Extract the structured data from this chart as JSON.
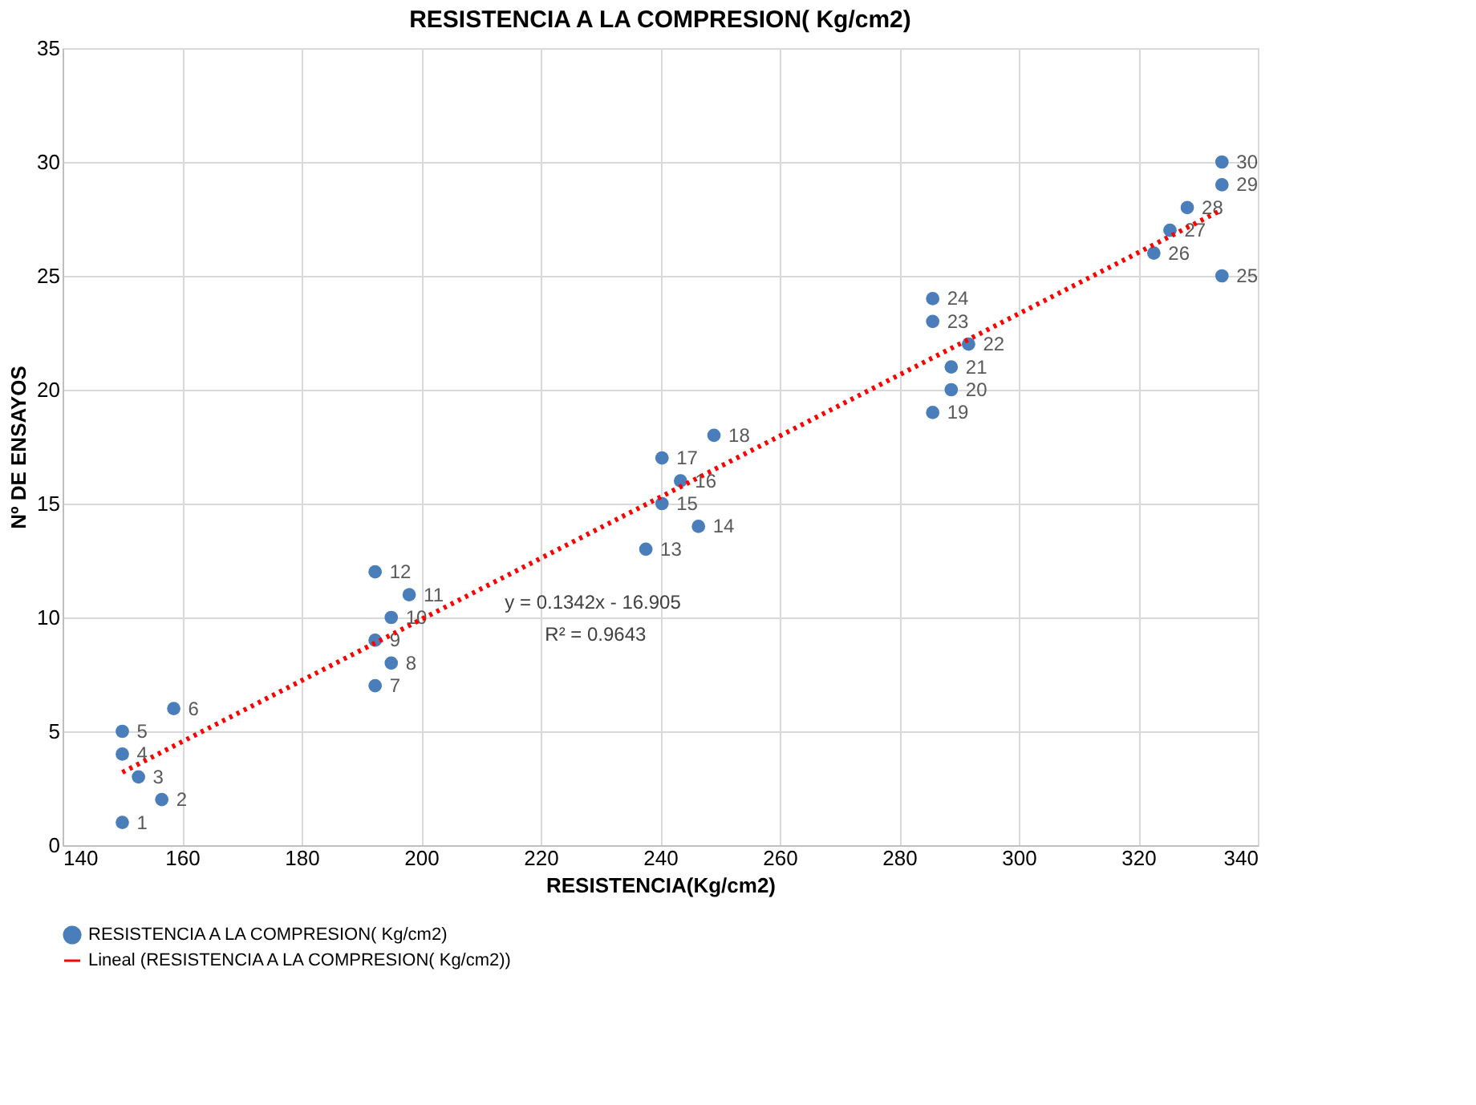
{
  "chart_data": {
    "type": "scatter",
    "title": "RESISTENCIA A LA COMPRESION( Kg/cm2)",
    "xlabel": "RESISTENCIA(Kg/cm2)",
    "ylabel": "Nº DE ENSAYOS",
    "series": [
      {
        "name": "RESISTENCIA A LA COMPRESION( Kg/cm2)",
        "color": "#4a7ebb",
        "marker": "circle",
        "x": [
          150,
          156.6,
          152.7,
          150,
          150,
          158.6,
          192.3,
          195,
          192.3,
          195,
          198,
          192.3,
          237.6,
          246.4,
          240.3,
          243.4,
          240.3,
          249,
          285.6,
          288.7,
          288.7,
          291.6,
          285.6,
          285.6,
          334,
          322.6,
          325.3,
          328.2,
          334,
          334
        ],
        "values": [
          1,
          2,
          3,
          4,
          5,
          6,
          7,
          8,
          9,
          10,
          11,
          12,
          13,
          14,
          15,
          16,
          17,
          18,
          19,
          20,
          21,
          22,
          23,
          24,
          25,
          26,
          27,
          28,
          29,
          30
        ],
        "value_labels": [
          "1",
          "2",
          "3",
          "4",
          "5",
          "6",
          "7",
          "8",
          "9",
          "10",
          "11",
          "12",
          "13",
          "14",
          "15",
          "16",
          "17",
          "18",
          "19",
          "20",
          "21",
          "22",
          "23",
          "24",
          "25",
          "26",
          "27",
          "28",
          "29",
          "30"
        ]
      },
      {
        "name": "Lineal (RESISTENCIA A LA COMPRESION( Kg/cm2))",
        "color": "#ff0000",
        "type": "line",
        "line_style": "dotted",
        "x": [
          150,
          334
        ],
        "values": [
          3.2,
          27.9
        ]
      }
    ],
    "annotations": [
      "y = 0.1342x - 16.905",
      "R² = 0.9643"
    ],
    "xlim": [
      140,
      340
    ],
    "xticks": [
      140,
      160,
      180,
      200,
      220,
      240,
      260,
      280,
      300,
      320,
      340
    ],
    "ylim": [
      0,
      35
    ],
    "yticks": [
      0,
      5,
      10,
      15,
      20,
      25,
      30,
      35
    ],
    "grid": true,
    "legend": "bottom"
  }
}
